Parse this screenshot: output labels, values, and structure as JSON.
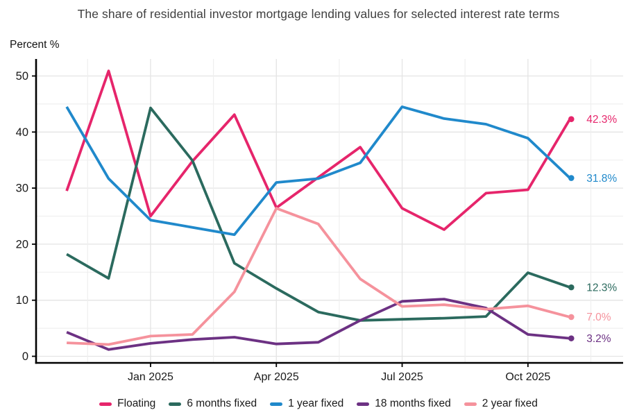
{
  "title": "The share of residential investor mortgage lending values for selected interest rate terms",
  "y_axis_label": "Percent %",
  "chart_data": {
    "type": "line",
    "title": "The share of residential investor mortgage lending values for selected interest rate terms",
    "xlabel": "",
    "ylabel": "Percent %",
    "ylim": [
      0,
      52
    ],
    "yticks": [
      0,
      10,
      20,
      30,
      40,
      50
    ],
    "grid": "major and minor gridlines on, light grey",
    "legend_position": "bottom",
    "x": [
      "Nov 2024",
      "Dec 2024",
      "Jan 2025",
      "Feb 2025",
      "Mar 2025",
      "Apr 2025",
      "May 2025",
      "Jun 2025",
      "Jul 2025",
      "Aug 2025",
      "Sep 2025",
      "Oct 2025",
      "Nov 2025"
    ],
    "x_tick_labels": [
      "Jan 2025",
      "Apr 2025",
      "Jul 2025",
      "Oct 2025"
    ],
    "x_tick_indices": [
      2,
      5,
      8,
      11
    ],
    "series": [
      {
        "name": "Floating",
        "color": "#e6256b",
        "end_label": "42.3%",
        "values": [
          29.5,
          50.9,
          25.0,
          34.8,
          43.1,
          26.5,
          31.9,
          37.3,
          26.4,
          22.6,
          29.1,
          29.7,
          42.3
        ]
      },
      {
        "name": "6 months fixed",
        "color": "#2b6a5e",
        "end_label": "12.3%",
        "values": [
          18.2,
          13.9,
          44.3,
          34.9,
          16.6,
          12.1,
          7.9,
          6.4,
          6.6,
          6.8,
          7.1,
          14.9,
          12.3
        ]
      },
      {
        "name": "1 year fixed",
        "color": "#2089cb",
        "end_label": "31.8%",
        "values": [
          44.5,
          31.7,
          24.3,
          23.0,
          21.7,
          31.0,
          31.7,
          34.5,
          44.5,
          42.4,
          41.4,
          38.9,
          31.8
        ]
      },
      {
        "name": "18 months fixed",
        "color": "#6c3183",
        "end_label": "3.2%",
        "values": [
          4.3,
          1.2,
          2.3,
          3.0,
          3.4,
          2.2,
          2.5,
          6.4,
          9.8,
          10.2,
          8.6,
          3.9,
          3.2
        ]
      },
      {
        "name": "2 year fixed",
        "color": "#f5929c",
        "end_label": "7.0%",
        "values": [
          2.4,
          2.1,
          3.6,
          3.9,
          11.5,
          26.4,
          23.6,
          13.8,
          8.9,
          9.2,
          8.4,
          9.0,
          7.0
        ]
      }
    ]
  },
  "colors": {
    "grid_major": "#e4e4e4",
    "grid_minor": "#efefef",
    "axis_line": "#000000",
    "tick_text": "#1a1a1a",
    "title_text": "#3f3f3f"
  }
}
